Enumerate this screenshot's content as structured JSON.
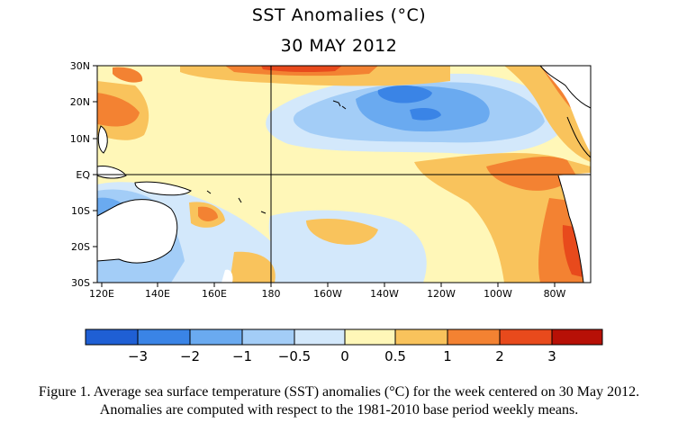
{
  "title": "SST Anomalies (°C)",
  "date": "30 MAY 2012",
  "lat_labels": [
    "30N",
    "20N",
    "10N",
    "EQ",
    "10S",
    "20S",
    "30S"
  ],
  "lon_labels": [
    "120E",
    "140E",
    "160E",
    "180",
    "160W",
    "140W",
    "120W",
    "100W",
    "80W"
  ],
  "colorbar": {
    "labels": [
      "−3",
      "−2",
      "−1",
      "−0.5",
      "0",
      "0.5",
      "1",
      "2",
      "3"
    ],
    "colors": [
      "#1f5fd4",
      "#3a84e6",
      "#6aaaf0",
      "#a3cdf7",
      "#d3e8fb",
      "#fff7b8",
      "#f9c35c",
      "#f38232",
      "#e84a1c",
      "#b71006"
    ]
  },
  "palette": {
    "land": "#ffffff",
    "neutral": "#fff7b8",
    "light_warm": "#f9c35c",
    "warm": "#f38232",
    "hot": "#e84a1c",
    "very_light_cool": "#d3e8fb",
    "light_cool": "#a3cdf7",
    "cool": "#6aaaf0",
    "cold": "#3a84e6"
  },
  "caption": {
    "line1": "Figure 1. Average sea surface temperature (SST) anomalies (°C) for the week centered on 30 May 2012.",
    "line2": "Anomalies are computed with respect to the 1981-2010 base period weekly means."
  }
}
